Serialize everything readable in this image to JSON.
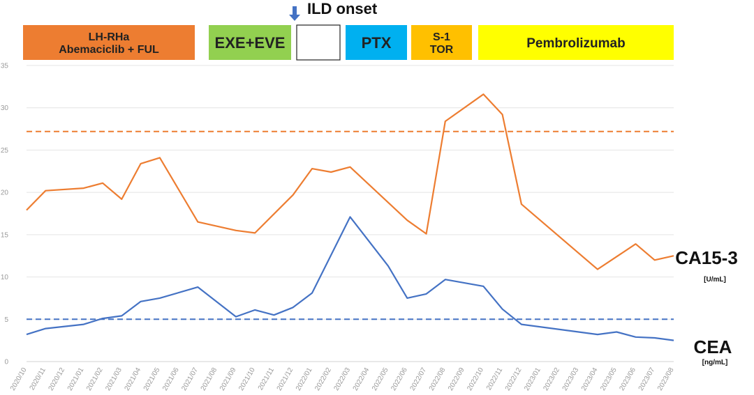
{
  "chart_data": {
    "type": "line",
    "title": "",
    "xlabel": "",
    "ylabel": "",
    "ylim": [
      0,
      35
    ],
    "yticks": [
      0,
      5,
      10,
      15,
      20,
      25,
      30,
      35
    ],
    "categories": [
      "2020/10",
      "2020/11",
      "2020/12",
      "2021/01",
      "2021/02",
      "2021/03",
      "2021/04",
      "2021/05",
      "2021/06",
      "2021/07",
      "2021/08",
      "2021/09",
      "2021/10",
      "2021/11",
      "2021/12",
      "2022/01",
      "2022/02",
      "2022/03",
      "2022/04",
      "2022/05",
      "2022/06",
      "2022/07",
      "2022/08",
      "2022/09",
      "2022/10",
      "2022/11",
      "2022/12",
      "2023/01",
      "2023/02",
      "2023/03",
      "2023/04",
      "2023/05",
      "2023/06",
      "2023/07",
      "2023/08"
    ],
    "grid": true,
    "series": [
      {
        "name": "CA15-3",
        "unit": "[U/mL]",
        "color": "#ED7D31",
        "points": [
          {
            "x": "2020/10",
            "y": 17.9
          },
          {
            "x": "2020/11",
            "y": 20.2
          },
          {
            "x": "2021/01",
            "y": 20.5
          },
          {
            "x": "2021/02",
            "y": 21.1
          },
          {
            "x": "2021/03",
            "y": 19.2
          },
          {
            "x": "2021/04",
            "y": 23.4
          },
          {
            "x": "2021/05",
            "y": 24.1
          },
          {
            "x": "2021/07",
            "y": 16.5
          },
          {
            "x": "2021/09",
            "y": 15.5
          },
          {
            "x": "2021/10",
            "y": 15.2
          },
          {
            "x": "2021/12",
            "y": 19.7
          },
          {
            "x": "2022/01",
            "y": 22.8
          },
          {
            "x": "2022/02",
            "y": 22.4
          },
          {
            "x": "2022/03",
            "y": 23.0
          },
          {
            "x": "2022/06",
            "y": 16.7
          },
          {
            "x": "2022/07",
            "y": 15.1
          },
          {
            "x": "2022/08",
            "y": 28.4
          },
          {
            "x": "2022/10",
            "y": 31.6
          },
          {
            "x": "2022/11",
            "y": 29.2
          },
          {
            "x": "2022/12",
            "y": 18.6
          },
          {
            "x": "2023/04",
            "y": 10.9
          },
          {
            "x": "2023/06",
            "y": 13.9
          },
          {
            "x": "2023/07",
            "y": 12.0
          },
          {
            "x": "2023/08",
            "y": 12.5
          }
        ],
        "reference_line": 27.2
      },
      {
        "name": "CEA",
        "unit": "[ng/mL]",
        "color": "#4472C4",
        "points": [
          {
            "x": "2020/10",
            "y": 3.2
          },
          {
            "x": "2020/11",
            "y": 3.9
          },
          {
            "x": "2021/01",
            "y": 4.4
          },
          {
            "x": "2021/02",
            "y": 5.1
          },
          {
            "x": "2021/03",
            "y": 5.4
          },
          {
            "x": "2021/04",
            "y": 7.1
          },
          {
            "x": "2021/05",
            "y": 7.5
          },
          {
            "x": "2021/07",
            "y": 8.8
          },
          {
            "x": "2021/09",
            "y": 5.3
          },
          {
            "x": "2021/10",
            "y": 6.1
          },
          {
            "x": "2021/11",
            "y": 5.5
          },
          {
            "x": "2021/12",
            "y": 6.4
          },
          {
            "x": "2022/01",
            "y": 8.1
          },
          {
            "x": "2022/03",
            "y": 17.1
          },
          {
            "x": "2022/05",
            "y": 11.3
          },
          {
            "x": "2022/06",
            "y": 7.5
          },
          {
            "x": "2022/07",
            "y": 8.0
          },
          {
            "x": "2022/08",
            "y": 9.7
          },
          {
            "x": "2022/10",
            "y": 8.9
          },
          {
            "x": "2022/11",
            "y": 6.2
          },
          {
            "x": "2022/12",
            "y": 4.4
          },
          {
            "x": "2023/04",
            "y": 3.2
          },
          {
            "x": "2023/05",
            "y": 3.5
          },
          {
            "x": "2023/06",
            "y": 2.9
          },
          {
            "x": "2023/07",
            "y": 2.8
          },
          {
            "x": "2023/08",
            "y": 2.5
          }
        ],
        "reference_line": 5.0
      }
    ],
    "annotations": {
      "onset": {
        "label": "ILD onset",
        "x": "2021/12",
        "arrow_color": "#4472C4"
      }
    },
    "treatment_bars": [
      {
        "lines": [
          "LH-RHa",
          "Abemaciclib + FUL"
        ],
        "color": "#ED7D31",
        "start": "2020/10",
        "end": "2021/07"
      },
      {
        "lines": [
          "EXE+EVE"
        ],
        "color": "#92D050",
        "start": "2021/08",
        "end": "2021/12"
      },
      {
        "lines": [],
        "color": "#FFFFFF",
        "start": "2021/12",
        "end": "2022/02"
      },
      {
        "lines": [
          "PTX"
        ],
        "color": "#00B0F0",
        "start": "2022/02",
        "end": "2022/05"
      },
      {
        "lines": [
          "S-1",
          "TOR"
        ],
        "color": "#FFC000",
        "start": "2022/05",
        "end": "2022/08"
      },
      {
        "lines": [
          "Pembrolizumab"
        ],
        "color": "#FFFF00",
        "start": "2022/08",
        "end": "2023/08"
      }
    ]
  }
}
